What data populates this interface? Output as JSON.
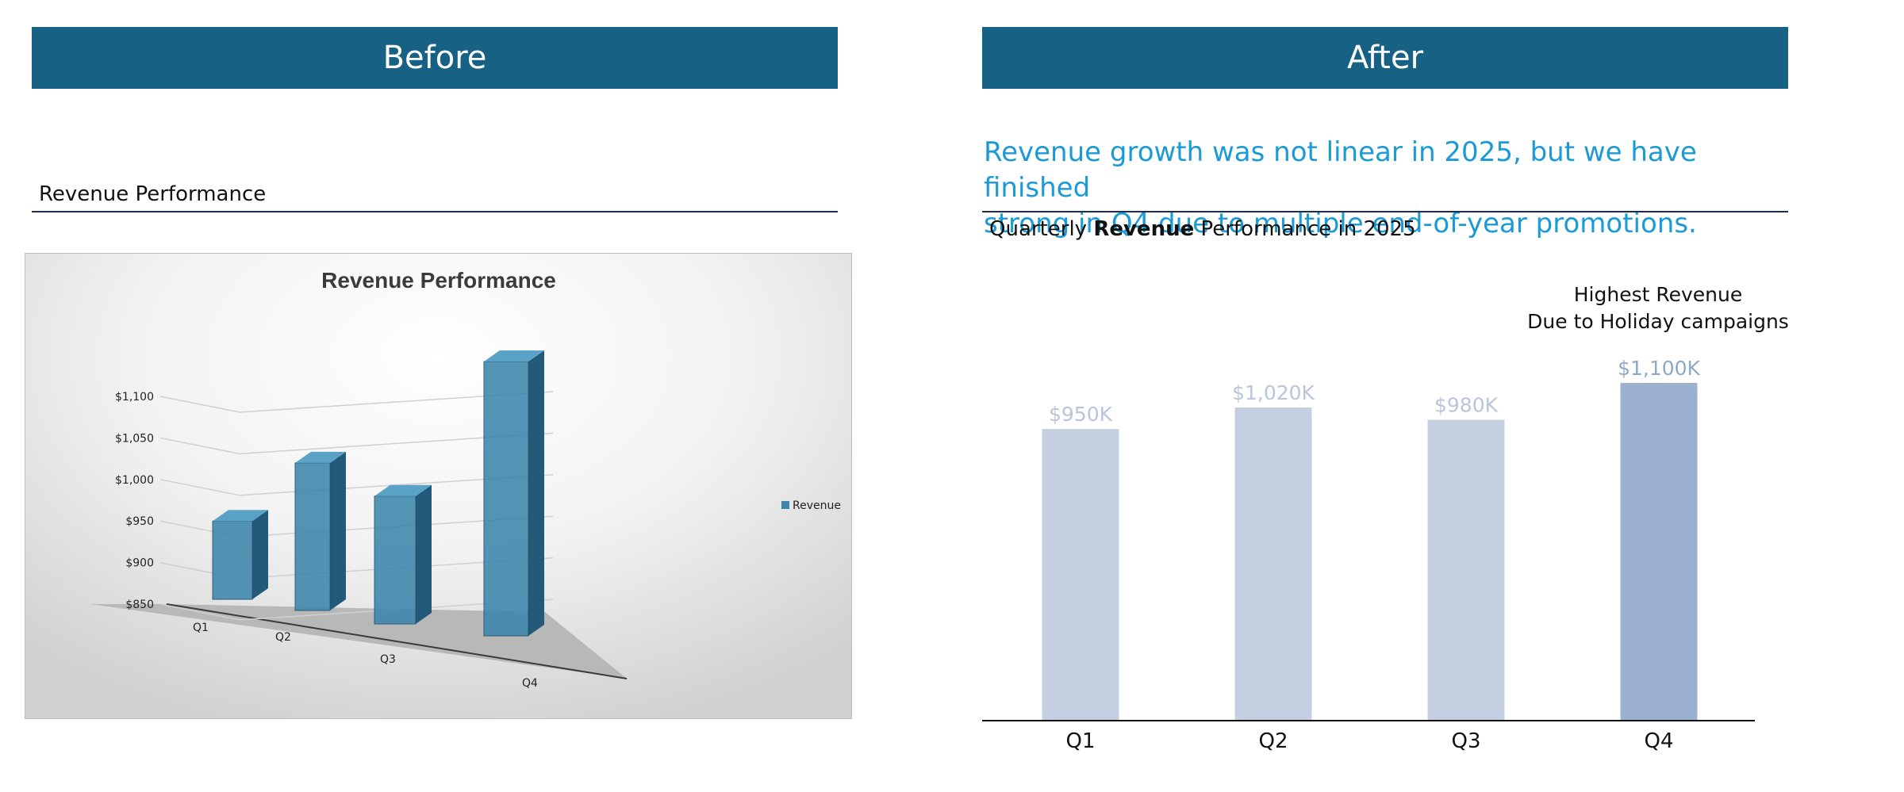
{
  "before": {
    "header": "Before",
    "subtitle": "Revenue Performance"
  },
  "after": {
    "header": "After",
    "headline_line1": "Revenue growth was not linear in 2025, but we have finished",
    "headline_line2": "strong in Q4 due to multiple end-of-year promotions.",
    "subtitle_prefix": "Quarterly",
    "subtitle_bold": "Revenue",
    "subtitle_suffix": "Performance in 2025",
    "annotation_line1": "Highest Revenue",
    "annotation_line2": "Due to Holiday campaigns"
  },
  "colors": {
    "header_bg": "#176284",
    "headline": "#1a9ad6",
    "bar_muted": "#c5cfe2",
    "bar_highlight": "#9cb1d1",
    "label_muted": "#b9c5dc",
    "label_highlight": "#8fa8ca",
    "bar3d_front": "#3d87ad",
    "bar3d_side": "#235a79",
    "bar3d_top": "#5aa3c7"
  },
  "chart_data": [
    {
      "type": "bar",
      "style": "3d",
      "title": "Revenue Performance",
      "categories": [
        "Q1",
        "Q2",
        "Q3",
        "Q4"
      ],
      "series": [
        {
          "name": "Revenue",
          "values": [
            950,
            1020,
            980,
            1100
          ]
        }
      ],
      "y_ticks": [
        "$850",
        "$900",
        "$950",
        "$1,000",
        "$1,050",
        "$1,100"
      ],
      "ylim": [
        850,
        1100
      ],
      "legend": "right",
      "grid": true
    },
    {
      "type": "bar",
      "categories": [
        "Q1",
        "Q2",
        "Q3",
        "Q4"
      ],
      "values": [
        950,
        1020,
        980,
        1100
      ],
      "data_labels": [
        "$950K",
        "$1,020K",
        "$980K",
        "$1,100K"
      ],
      "highlight_index": 3,
      "ylim": [
        0,
        1100
      ],
      "grid": false,
      "legend": "none"
    }
  ]
}
